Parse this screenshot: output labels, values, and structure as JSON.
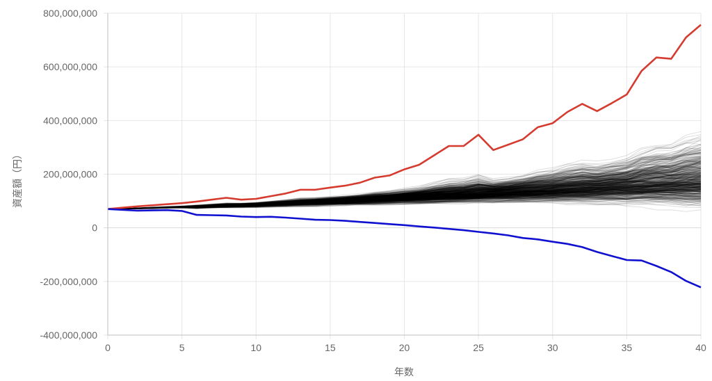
{
  "chart_data": {
    "type": "line",
    "title": "",
    "xlabel": "年数",
    "ylabel": "資産額（円）",
    "xlim": [
      0,
      40
    ],
    "ylim": [
      -400000000,
      800000000
    ],
    "x_ticks": [
      "0",
      "5",
      "10",
      "15",
      "20",
      "25",
      "30",
      "35",
      "40"
    ],
    "y_ticks": [
      "800,000,000",
      "600,000,000",
      "400,000,000",
      "200,000,000",
      "0",
      "-200,000,000",
      "-400,000,000"
    ],
    "grid": true,
    "legend": "none",
    "colors": {
      "max": "#d63b2f",
      "min": "#1010d0",
      "sims": "#000000"
    },
    "simulations": {
      "count": 500,
      "start_value": 70000000,
      "years": 40,
      "note": "Monte Carlo paths drawn in translucent black"
    },
    "series": [
      {
        "key": "max",
        "x": [
          0,
          1,
          2,
          3,
          4,
          5,
          6,
          7,
          8,
          9,
          10,
          11,
          12,
          13,
          14,
          15,
          16,
          17,
          18,
          19,
          20,
          21,
          22,
          23,
          24,
          25,
          26,
          27,
          28,
          29,
          30,
          31,
          32,
          33,
          34,
          35,
          36,
          37,
          38,
          39,
          40
        ],
        "values": [
          70000000,
          75000000,
          80000000,
          84000000,
          88000000,
          92000000,
          98000000,
          105000000,
          112000000,
          105000000,
          108000000,
          118000000,
          128000000,
          142000000,
          142000000,
          150000000,
          157000000,
          168000000,
          187000000,
          195000000,
          218000000,
          235000000,
          270000000,
          305000000,
          305000000,
          347000000,
          290000000,
          310000000,
          330000000,
          375000000,
          390000000,
          432000000,
          462000000,
          435000000,
          465000000,
          497000000,
          585000000,
          635000000,
          630000000,
          710000000,
          757000000
        ]
      },
      {
        "key": "min",
        "x": [
          0,
          1,
          2,
          3,
          4,
          5,
          6,
          7,
          8,
          9,
          10,
          11,
          12,
          13,
          14,
          15,
          16,
          17,
          18,
          19,
          20,
          21,
          22,
          23,
          24,
          25,
          26,
          27,
          28,
          29,
          30,
          31,
          32,
          33,
          34,
          35,
          36,
          37,
          38,
          39,
          40
        ],
        "values": [
          70000000,
          67000000,
          64000000,
          65000000,
          66000000,
          63000000,
          48000000,
          47000000,
          46000000,
          42000000,
          40000000,
          41000000,
          38000000,
          34000000,
          30000000,
          29000000,
          26000000,
          22000000,
          18000000,
          14000000,
          10000000,
          5000000,
          1000000,
          -4000000,
          -9000000,
          -15000000,
          -21000000,
          -28000000,
          -38000000,
          -43000000,
          -52000000,
          -60000000,
          -72000000,
          -90000000,
          -105000000,
          -120000000,
          -122000000,
          -142000000,
          -165000000,
          -198000000,
          -222000000
        ]
      }
    ]
  }
}
